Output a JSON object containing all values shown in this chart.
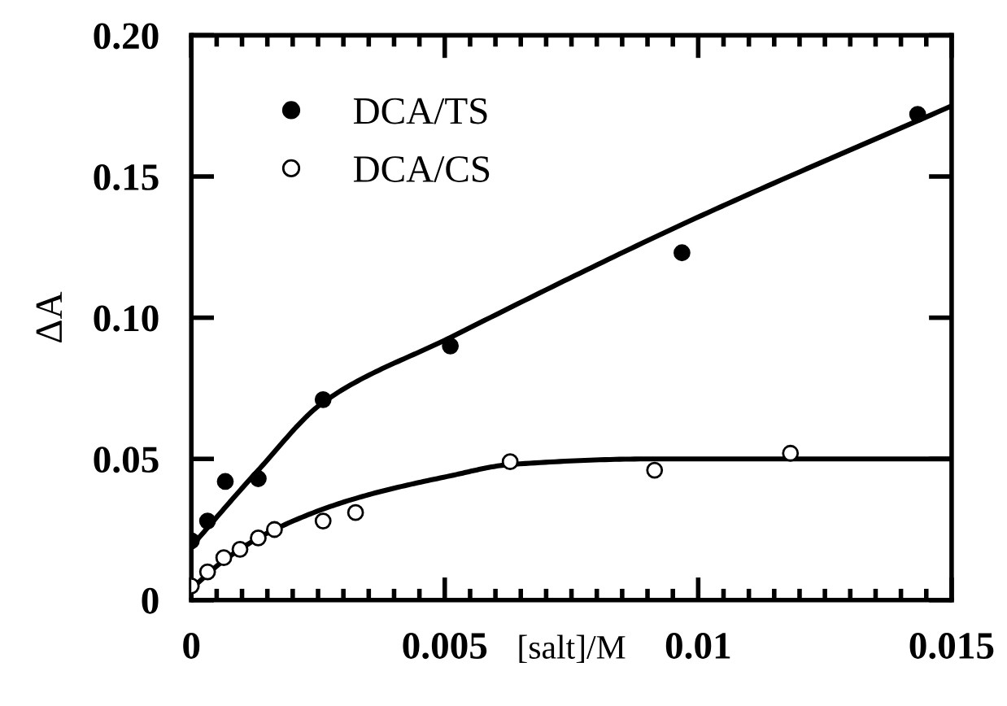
{
  "chart_data": {
    "type": "scatter",
    "xlabel": "[salt]/M",
    "ylabel": "ΔA",
    "xlim": [
      0,
      0.015
    ],
    "xticks": [
      0,
      0.005,
      0.01,
      0.015
    ],
    "ylim": [
      0,
      0.2
    ],
    "yticks": [
      0,
      0.05,
      {
        "value": 0.1,
        "label": "0.10"
      },
      0.15,
      {
        "value": 0.2,
        "label": "0.20"
      }
    ],
    "legend": "top left",
    "grid": false,
    "series": [
      {
        "name": "DCA/TS",
        "marker": "circle",
        "color": "#000000",
        "x": [
          0,
          0.00032,
          0.00067,
          0.00132,
          0.0026,
          0.00511,
          0.00968,
          0.01433
        ],
        "values": [
          0.021,
          0.028,
          0.042,
          0.043,
          0.071,
          0.09,
          0.123,
          0.172
        ]
      },
      {
        "name": "DCA/CS",
        "marker": "circle",
        "color": "#ffffff",
        "x": [
          0,
          0.00032,
          0.00064,
          0.00096,
          0.00132,
          0.00164,
          0.0026,
          0.00324,
          0.00629,
          0.00914,
          0.01182
        ],
        "values": [
          0.005,
          0.01,
          0.015,
          0.018,
          0.022,
          0.025,
          0.028,
          0.031,
          0.049,
          0.046,
          0.052
        ]
      },
      {
        "type": "line",
        "color": "#000000",
        "x": [
          0,
          0.00132,
          0.0026,
          0.00511,
          0.00968,
          0.015
        ],
        "values": [
          0.019,
          0.046,
          0.07,
          0.093,
          0.133,
          0.175
        ]
      },
      {
        "type": "line",
        "color": "#000000",
        "x": [
          0,
          0.00064,
          0.00164,
          0.00324,
          0.00511,
          0.00629,
          0.00914,
          0.015
        ],
        "values": [
          0.004,
          0.014,
          0.025,
          0.036,
          0.044,
          0.048,
          0.05,
          0.05
        ]
      }
    ]
  }
}
